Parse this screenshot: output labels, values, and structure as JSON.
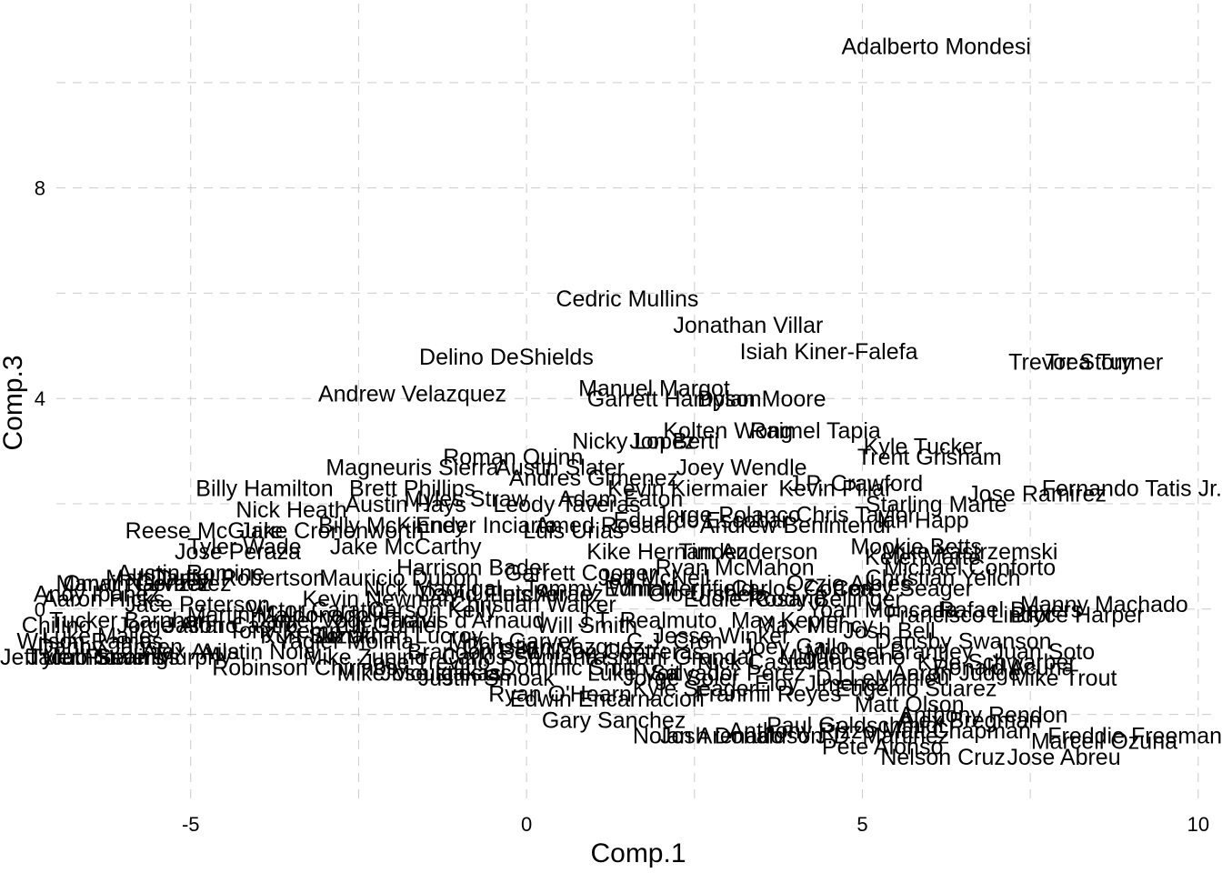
{
  "chart_data": {
    "type": "scatter",
    "title": "",
    "xlabel": "Comp.1",
    "ylabel": "Comp.3",
    "xlim": [
      -7.0,
      10.3
    ],
    "ylim": [
      -3.7,
      11.5
    ],
    "xticks": [
      -5,
      0,
      5,
      10
    ],
    "yticks": [
      0,
      4,
      8
    ],
    "grid": true,
    "points": [
      {
        "label": "Adalberto Mondesi",
        "x": 6.1,
        "y": 10.7
      },
      {
        "label": "Cedric Mullins",
        "x": 1.5,
        "y": 5.9
      },
      {
        "label": "Jonathan Villar",
        "x": 3.3,
        "y": 5.4
      },
      {
        "label": "Isiah Kiner-Falefa",
        "x": 4.5,
        "y": 4.9
      },
      {
        "label": "Trevor Story",
        "x": 8.1,
        "y": 4.7
      },
      {
        "label": "Trea Turner",
        "x": 8.6,
        "y": 4.7
      },
      {
        "label": "Delino DeShields",
        "x": -0.3,
        "y": 4.8
      },
      {
        "label": "Manuel Margot",
        "x": 1.9,
        "y": 4.2
      },
      {
        "label": "Garrett Hampson",
        "x": 2.2,
        "y": 4.0
      },
      {
        "label": "Dylan Moore",
        "x": 3.5,
        "y": 4.0
      },
      {
        "label": "Andrew Velazquez",
        "x": -1.7,
        "y": 4.1
      },
      {
        "label": "Kolten Wong",
        "x": 3.0,
        "y": 3.4
      },
      {
        "label": "Raimel Tapia",
        "x": 4.3,
        "y": 3.4
      },
      {
        "label": "Jon Berti",
        "x": 2.2,
        "y": 3.2
      },
      {
        "label": "Nicky Lopez",
        "x": 1.6,
        "y": 3.2
      },
      {
        "label": "Kyle Tucker",
        "x": 5.9,
        "y": 3.1
      },
      {
        "label": "Trent Grisham",
        "x": 6.0,
        "y": 2.9
      },
      {
        "label": "Roman Quinn",
        "x": -0.2,
        "y": 2.9
      },
      {
        "label": "Magneuris Sierra",
        "x": -1.7,
        "y": 2.7
      },
      {
        "label": "Austin Slater",
        "x": 0.5,
        "y": 2.7
      },
      {
        "label": "Joey Wendle",
        "x": 3.2,
        "y": 2.7
      },
      {
        "label": "Andres Gimenez",
        "x": 1.0,
        "y": 2.5
      },
      {
        "label": "J.P. Crawford",
        "x": 4.9,
        "y": 2.4
      },
      {
        "label": "Kevin Kiermaier",
        "x": 2.4,
        "y": 2.3
      },
      {
        "label": "Kevin Pillar",
        "x": 4.6,
        "y": 2.3
      },
      {
        "label": "Billy Hamilton",
        "x": -3.9,
        "y": 2.3
      },
      {
        "label": "Brett Phillips",
        "x": -1.7,
        "y": 2.3
      },
      {
        "label": "Fernando Tatis Jr.",
        "x": 8.7,
        "y": 2.3
      },
      {
        "label": "Jose Ramirez",
        "x": 7.6,
        "y": 2.2
      },
      {
        "label": "Starling Marte",
        "x": 6.1,
        "y": 2.0
      },
      {
        "label": "Adam Eaton",
        "x": 1.4,
        "y": 2.1
      },
      {
        "label": "Leody Taveras",
        "x": 0.6,
        "y": 2.0
      },
      {
        "label": "Austin Hays",
        "x": -1.8,
        "y": 2.0
      },
      {
        "label": "Myles Straw",
        "x": -0.9,
        "y": 2.1
      },
      {
        "label": "Nick Heath",
        "x": -3.5,
        "y": 1.9
      },
      {
        "label": "Jorge Polanco",
        "x": 3.0,
        "y": 1.8
      },
      {
        "label": "Chris Taylor",
        "x": 4.9,
        "y": 1.8
      },
      {
        "label": "Andrew Benintendi",
        "x": 4.0,
        "y": 1.6
      },
      {
        "label": "Ian Happ",
        "x": 5.9,
        "y": 1.7
      },
      {
        "label": "Amed Rosario",
        "x": 1.2,
        "y": 1.6
      },
      {
        "label": "Eduardo Escobar",
        "x": 2.6,
        "y": 1.7
      },
      {
        "label": "Luis Urias",
        "x": 0.7,
        "y": 1.5
      },
      {
        "label": "Ender Inciarte",
        "x": -0.6,
        "y": 1.6
      },
      {
        "label": "Billy McKinney",
        "x": -2.0,
        "y": 1.6
      },
      {
        "label": "Reese McGuire",
        "x": -4.8,
        "y": 1.5
      },
      {
        "label": "Jake Cronenworth",
        "x": -2.9,
        "y": 1.5
      },
      {
        "label": "Mookie Betts",
        "x": 5.8,
        "y": 1.2
      },
      {
        "label": "Mike Yastrzemski",
        "x": 6.6,
        "y": 1.1
      },
      {
        "label": "Michael Conforto",
        "x": 6.6,
        "y": 0.8
      },
      {
        "label": "Ketel Marte",
        "x": 5.9,
        "y": 1.0
      },
      {
        "label": "Christian Yelich",
        "x": 6.2,
        "y": 0.6
      },
      {
        "label": "Kike Hernandez",
        "x": 2.1,
        "y": 1.1
      },
      {
        "label": "Tim Anderson",
        "x": 3.3,
        "y": 1.1
      },
      {
        "label": "Jake McCarthy",
        "x": -1.8,
        "y": 1.2
      },
      {
        "label": "Tyler Wade",
        "x": -4.2,
        "y": 1.2
      },
      {
        "label": "Jose Peraza",
        "x": -4.3,
        "y": 1.1
      },
      {
        "label": "Garrett Cooper",
        "x": 0.8,
        "y": 0.7
      },
      {
        "label": "Ryan McMahon",
        "x": 3.1,
        "y": 0.8
      },
      {
        "label": "Jeff McNeil",
        "x": 1.9,
        "y": 0.6
      },
      {
        "label": "Harrison Bader",
        "x": -0.8,
        "y": 0.8
      },
      {
        "label": "Mauricio Dubon",
        "x": -1.9,
        "y": 0.6
      },
      {
        "label": "Daniel Robertson",
        "x": -4.3,
        "y": 0.6
      },
      {
        "label": "Matt Duffy",
        "x": -5.5,
        "y": 0.6
      },
      {
        "label": "Austin Romine",
        "x": -5.0,
        "y": 0.7
      },
      {
        "label": "Omar Narvaez",
        "x": -5.8,
        "y": 0.5
      },
      {
        "label": "Marwin Gonzalez",
        "x": -5.7,
        "y": 0.5
      },
      {
        "label": "Andy Ibanez",
        "x": -6.4,
        "y": 0.3
      },
      {
        "label": "Aaron Hicks",
        "x": -6.3,
        "y": 0.2
      },
      {
        "label": "Manny Machado",
        "x": 8.6,
        "y": 0.1
      },
      {
        "label": "Bryce Harper",
        "x": 8.2,
        "y": -0.1
      },
      {
        "label": "Rafael Devers",
        "x": 7.2,
        "y": 0.0
      },
      {
        "label": "Francisco Lindor",
        "x": 6.6,
        "y": -0.1
      },
      {
        "label": "Yoan Moncada",
        "x": 5.3,
        "y": 0.0
      },
      {
        "label": "Corey Seager",
        "x": 5.6,
        "y": 0.4
      },
      {
        "label": "Cody Bellinger",
        "x": 4.5,
        "y": 0.2
      },
      {
        "label": "Max Muncy",
        "x": 4.3,
        "y": -0.3
      },
      {
        "label": "Josh Bell",
        "x": 5.4,
        "y": -0.4
      },
      {
        "label": "Max Kepler",
        "x": 3.9,
        "y": -0.2
      },
      {
        "label": "Gio Urshela",
        "x": 2.7,
        "y": 0.3
      },
      {
        "label": "Eddie Rosario",
        "x": 3.4,
        "y": 0.2
      },
      {
        "label": "Dansby Swanson",
        "x": 6.5,
        "y": -0.6
      },
      {
        "label": "Tommy Edman",
        "x": 1.1,
        "y": 0.4
      },
      {
        "label": "Whit Merrifield",
        "x": 2.3,
        "y": 0.4
      },
      {
        "label": "Ozzie Albies",
        "x": 4.8,
        "y": 0.5
      },
      {
        "label": "Carlos Correa",
        "x": 4.1,
        "y": 0.4
      },
      {
        "label": "Luis Arraez",
        "x": 0.3,
        "y": 0.3
      },
      {
        "label": "David Fletcher",
        "x": -0.5,
        "y": 0.3
      },
      {
        "label": "Nick Madrigal",
        "x": -1.4,
        "y": 0.4
      },
      {
        "label": "Kevin Newman",
        "x": -2.2,
        "y": 0.2
      },
      {
        "label": "Victor Caratini",
        "x": -3.1,
        "y": 0.0
      },
      {
        "label": "Martin Maldonado",
        "x": -3.7,
        "y": -0.1
      },
      {
        "label": "Jason Castro",
        "x": -4.4,
        "y": -0.3
      },
      {
        "label": "Jorge Alfaro",
        "x": -5.2,
        "y": -0.3
      },
      {
        "label": "Tucker Barnhart",
        "x": -5.9,
        "y": -0.2
      },
      {
        "label": "Luke Maile",
        "x": -6.4,
        "y": -0.5
      },
      {
        "label": "Wilson Ramos",
        "x": -6.5,
        "y": -0.6
      },
      {
        "label": "Danny Jansen",
        "x": -6.2,
        "y": -0.7
      },
      {
        "label": "Tony Kemp",
        "x": -3.6,
        "y": -0.4
      },
      {
        "label": "Kurt Suzuki",
        "x": -3.1,
        "y": -0.5
      },
      {
        "label": "Yadier Molina",
        "x": -2.7,
        "y": -0.6
      },
      {
        "label": "Jonathan Lucroy",
        "x": -1.9,
        "y": -0.5
      },
      {
        "label": "Mike Zunino",
        "x": -2.4,
        "y": -0.9
      },
      {
        "label": "Jose Trevino",
        "x": -1.5,
        "y": -1.0
      },
      {
        "label": "Robinson Chirinos",
        "x": -3.3,
        "y": -1.1
      },
      {
        "label": "Chilino",
        "x": -7.0,
        "y": -0.3
      },
      {
        "label": "Jacob Stallings",
        "x": -6.3,
        "y": -0.9
      },
      {
        "label": "Jeff Mathis",
        "x": -6.9,
        "y": -0.9
      },
      {
        "label": "Tyler Flowers",
        "x": -6.4,
        "y": -0.9
      },
      {
        "label": "Sean Murphy",
        "x": -5.4,
        "y": -0.9
      },
      {
        "label": "Alex Avila",
        "x": -5.0,
        "y": -0.8
      },
      {
        "label": "Austin Nola",
        "x": -4.0,
        "y": -0.8
      },
      {
        "label": "Jose Iglesias",
        "x": -1.2,
        "y": -1.2
      },
      {
        "label": "Mike Moustakas",
        "x": -1.6,
        "y": -1.2
      },
      {
        "label": "Justin Smoak",
        "x": -0.6,
        "y": -1.3
      },
      {
        "label": "Gary Sanchez",
        "x": 1.3,
        "y": -2.1
      },
      {
        "label": "Ryan O'Hearn",
        "x": 0.5,
        "y": -1.6
      },
      {
        "label": "Edwin Encarnacion",
        "x": 1.2,
        "y": -1.7
      },
      {
        "label": "Kyle Seager",
        "x": 2.5,
        "y": -1.5
      },
      {
        "label": "Nolan Arenado",
        "x": 2.7,
        "y": -2.4
      },
      {
        "label": "Josh Donaldson",
        "x": 3.2,
        "y": -2.4
      },
      {
        "label": "Anthony Rizzo",
        "x": 4.1,
        "y": -2.3
      },
      {
        "label": "Paul Goldschmidt",
        "x": 4.9,
        "y": -2.2
      },
      {
        "label": "J.D. Martinez",
        "x": 5.3,
        "y": -2.4
      },
      {
        "label": "Pete Alonso",
        "x": 5.3,
        "y": -2.6
      },
      {
        "label": "Nelson Cruz",
        "x": 6.2,
        "y": -2.8
      },
      {
        "label": "Jose Abreu",
        "x": 8.0,
        "y": -2.8
      },
      {
        "label": "Marcell Ozuna",
        "x": 8.6,
        "y": -2.5
      },
      {
        "label": "Freddie Freeman",
        "x": 9.7,
        "y": -2.4
      },
      {
        "label": "Alex Bregman",
        "x": 6.6,
        "y": -2.1
      },
      {
        "label": "Matt Chapman",
        "x": 6.4,
        "y": -2.3
      },
      {
        "label": "Eugenio Suarez",
        "x": 5.8,
        "y": -1.5
      },
      {
        "label": "Juan Soto",
        "x": 7.7,
        "y": -0.8
      },
      {
        "label": "Mike Trout",
        "x": 8.0,
        "y": -1.3
      },
      {
        "label": "Kyle Schwarber",
        "x": 7.0,
        "y": -1.0
      },
      {
        "label": "Michael Brantley",
        "x": 5.4,
        "y": -0.8
      },
      {
        "label": "Anthony Rendon",
        "x": 6.8,
        "y": -2.0
      },
      {
        "label": "Matt Olson",
        "x": 5.7,
        "y": -1.8
      },
      {
        "label": "Ronald Acuna",
        "x": 7.1,
        "y": -1.1
      },
      {
        "label": "Aaron Judge",
        "x": 6.4,
        "y": -1.2
      },
      {
        "label": "DJ LeMahieu",
        "x": 5.3,
        "y": -1.3
      },
      {
        "label": "Nick Castellanos",
        "x": 3.8,
        "y": -1.0
      },
      {
        "label": "Eloy Jimenez",
        "x": 4.4,
        "y": -1.4
      },
      {
        "label": "Salvador Perez",
        "x": 3.0,
        "y": -1.2
      },
      {
        "label": "Yasmani Grandal",
        "x": 2.1,
        "y": -0.9
      },
      {
        "label": "Willson Contreras",
        "x": 1.3,
        "y": -0.8
      },
      {
        "label": "Christian Vazquez",
        "x": 0.4,
        "y": -0.7
      },
      {
        "label": "J.T. Realmuto",
        "x": 1.8,
        "y": -0.2
      },
      {
        "label": "Will Smith",
        "x": 0.9,
        "y": -0.3
      },
      {
        "label": "Mitch Garver",
        "x": -0.2,
        "y": -0.6
      },
      {
        "label": "Travis d'Arnaud",
        "x": -0.9,
        "y": -0.2
      },
      {
        "label": "Carson Kelly",
        "x": -1.4,
        "y": 0.0
      },
      {
        "label": "Christian Walker",
        "x": 0.1,
        "y": 0.1
      },
      {
        "label": "C.J. Cron",
        "x": 2.2,
        "y": -0.6
      },
      {
        "label": "Jesse Winker",
        "x": 2.9,
        "y": -0.5
      },
      {
        "label": "Joey Gallo",
        "x": 4.0,
        "y": -0.7
      },
      {
        "label": "Miguel Sano",
        "x": 4.7,
        "y": -0.9
      },
      {
        "label": "Franmil Reyes",
        "x": 3.6,
        "y": -1.6
      },
      {
        "label": "Jorge Soler",
        "x": 2.3,
        "y": -1.3
      },
      {
        "label": "Luke Voit",
        "x": 1.6,
        "y": -1.2
      },
      {
        "label": "Dominic Smith",
        "x": 0.7,
        "y": -1.1
      },
      {
        "label": "Carlos Santana",
        "x": -0.1,
        "y": -0.9
      },
      {
        "label": "Brandon Belt",
        "x": -0.8,
        "y": -0.8
      },
      {
        "label": "Yuli Gurriel",
        "x": -2.1,
        "y": -0.3
      },
      {
        "label": "Daniel Vogelbach",
        "x": -2.8,
        "y": -0.2
      },
      {
        "label": "Jace Peterson",
        "x": -4.9,
        "y": 0.1
      }
    ]
  }
}
